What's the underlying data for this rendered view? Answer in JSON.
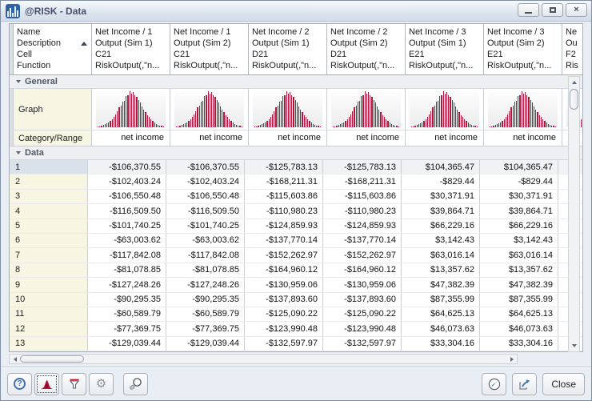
{
  "window": {
    "title": "@RISK - Data"
  },
  "columns": {
    "label_header": {
      "lines": [
        "Name",
        "Description",
        "Cell",
        "Function"
      ],
      "sort": "ascending"
    },
    "data_headers": [
      {
        "lines": [
          "Net Income / 1",
          "Output (Sim 1)",
          "C21",
          "RiskOutput(,\"n..."
        ]
      },
      {
        "lines": [
          "Net Income / 1",
          "Output (Sim 2)",
          "C21",
          "RiskOutput(,\"n..."
        ]
      },
      {
        "lines": [
          "Net Income / 2",
          "Output (Sim 1)",
          "D21",
          "RiskOutput(,\"n..."
        ]
      },
      {
        "lines": [
          "Net Income / 2",
          "Output (Sim 2)",
          "D21",
          "RiskOutput(,\"n..."
        ]
      },
      {
        "lines": [
          "Net Income / 3",
          "Output (Sim 1)",
          "E21",
          "RiskOutput(,\"n..."
        ]
      },
      {
        "lines": [
          "Net Income / 3",
          "Output (Sim 2)",
          "E21",
          "RiskOutput(,\"n..."
        ]
      }
    ],
    "partial_header": {
      "lines": [
        "Ne",
        "Ou",
        "F2",
        "Ris"
      ]
    }
  },
  "sections": {
    "general": "General",
    "data": "Data"
  },
  "general": {
    "graph_label": "Graph",
    "category_label": "Category/Range",
    "category_value": "net income",
    "graph_color": "#b2173b",
    "graph_bar_heights": [
      2,
      3,
      5,
      6,
      9,
      11,
      14,
      18,
      23,
      29,
      36,
      44,
      55,
      60,
      72,
      74,
      86,
      88,
      100,
      94,
      98,
      90,
      84,
      76,
      68,
      58,
      50,
      42,
      34,
      28,
      22,
      17,
      13,
      10,
      7,
      5,
      4,
      3
    ]
  },
  "table": {
    "rows": [
      {
        "num": "1",
        "values": [
          "-$106,370.55",
          "-$106,370.55",
          "-$125,783.13",
          "-$125,783.13",
          "$104,365.47",
          "$104,365.47"
        ]
      },
      {
        "num": "2",
        "values": [
          "-$102,403.24",
          "-$102,403.24",
          "-$168,211.31",
          "-$168,211.31",
          "-$829.44",
          "-$829.44"
        ]
      },
      {
        "num": "3",
        "values": [
          "-$106,550.48",
          "-$106,550.48",
          "-$115,603.86",
          "-$115,603.86",
          "$30,371.91",
          "$30,371.91"
        ]
      },
      {
        "num": "4",
        "values": [
          "-$116,509.50",
          "-$116,509.50",
          "-$110,980.23",
          "-$110,980.23",
          "$39,864.71",
          "$39,864.71"
        ]
      },
      {
        "num": "5",
        "values": [
          "-$101,740.25",
          "-$101,740.25",
          "-$124,859.93",
          "-$124,859.93",
          "$66,229.16",
          "$66,229.16"
        ]
      },
      {
        "num": "6",
        "values": [
          "-$63,003.62",
          "-$63,003.62",
          "-$137,770.14",
          "-$137,770.14",
          "$3,142.43",
          "$3,142.43"
        ]
      },
      {
        "num": "7",
        "values": [
          "-$117,842.08",
          "-$117,842.08",
          "-$152,262.97",
          "-$152,262.97",
          "$63,016.14",
          "$63,016.14"
        ]
      },
      {
        "num": "8",
        "values": [
          "-$81,078.85",
          "-$81,078.85",
          "-$164,960.12",
          "-$164,960.12",
          "$13,357.62",
          "$13,357.62"
        ]
      },
      {
        "num": "9",
        "values": [
          "-$127,248.26",
          "-$127,248.26",
          "-$130,959.06",
          "-$130,959.06",
          "$47,382.39",
          "$47,382.39"
        ]
      },
      {
        "num": "10",
        "values": [
          "-$90,295.35",
          "-$90,295.35",
          "-$137,893.60",
          "-$137,893.60",
          "$87,355.99",
          "$87,355.99"
        ]
      },
      {
        "num": "11",
        "values": [
          "-$60,589.79",
          "-$60,589.79",
          "-$125,090.22",
          "-$125,090.22",
          "$64,625.13",
          "$64,625.13"
        ]
      },
      {
        "num": "12",
        "values": [
          "-$77,369.75",
          "-$77,369.75",
          "-$123,990.48",
          "-$123,990.48",
          "$46,073.63",
          "$46,073.63"
        ]
      },
      {
        "num": "13",
        "values": [
          "-$129,039.44",
          "-$129,039.44",
          "-$132,597.97",
          "-$132,597.97",
          "$33,304.16",
          "$33,304.16"
        ]
      }
    ]
  },
  "toolbar": {
    "help_glyph": "?",
    "gear_glyph": "⚙",
    "close_label": "Close",
    "icons": [
      "help-icon",
      "histogram-graph-icon",
      "filter-funnel-icon",
      "gear-icon",
      "magnifier-icon",
      "pen-circle-icon",
      "export-report-icon"
    ],
    "accent_blue": "#3b6fb5",
    "histogram_red": "#b2173b"
  }
}
